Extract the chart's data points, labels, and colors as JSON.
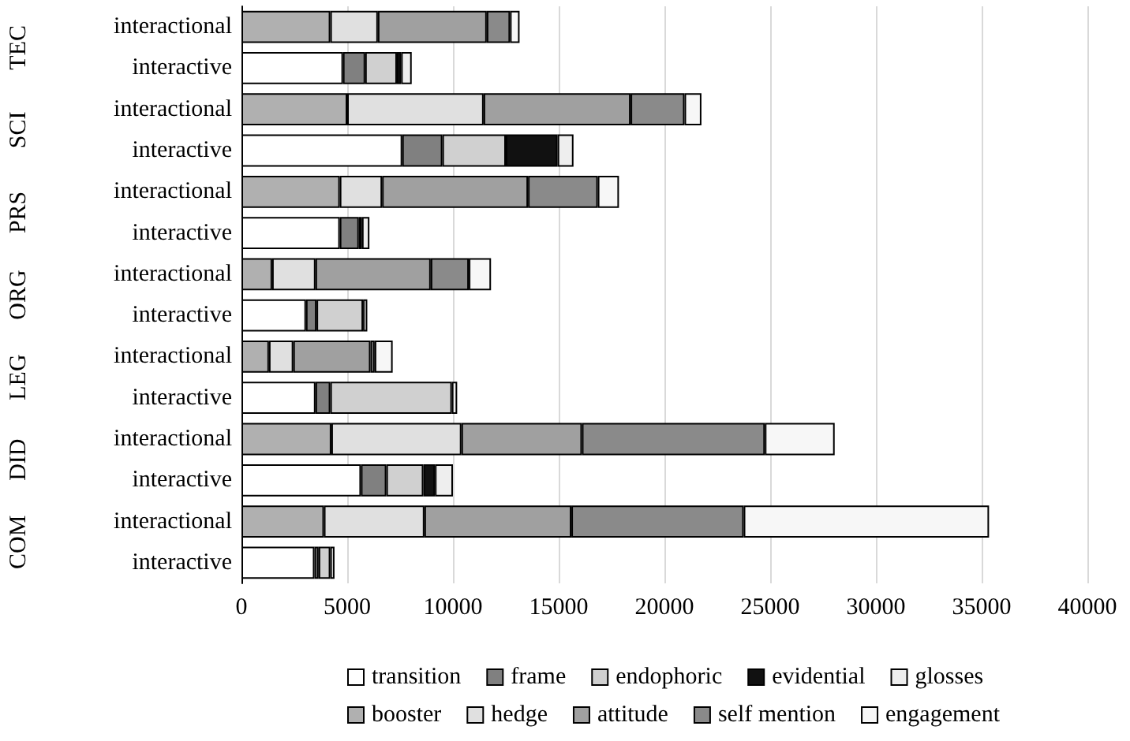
{
  "chart_data": {
    "type": "bar",
    "orientation": "horizontal",
    "stacked": true,
    "categories": [
      "interactional",
      "interactive",
      "interactional",
      "interactive",
      "interactional",
      "interactive",
      "interactional",
      "interactive",
      "interactional",
      "interactive",
      "interactional",
      "interactive",
      "interactional",
      "interactive"
    ],
    "annotations": [
      "TEC",
      "SCI",
      "PRS",
      "ORG",
      "LEG",
      "DID",
      "COM"
    ],
    "series": [
      {
        "name": "transition",
        "color": "#ffffff",
        "values": [
          null,
          4800,
          null,
          7600,
          null,
          4650,
          null,
          3050,
          null,
          3500,
          null,
          5650,
          null,
          3450
        ]
      },
      {
        "name": "frame",
        "color": "#808080",
        "values": [
          null,
          1050,
          null,
          1900,
          null,
          900,
          null,
          500,
          null,
          700,
          null,
          1200,
          null,
          200
        ]
      },
      {
        "name": "endophoric",
        "color": "#d0d0d0",
        "values": [
          null,
          1500,
          null,
          3000,
          null,
          null,
          null,
          2200,
          null,
          5750,
          null,
          1750,
          null,
          550
        ]
      },
      {
        "name": "evidential",
        "color": "#111111",
        "values": [
          null,
          200,
          null,
          2450,
          null,
          150,
          null,
          null,
          null,
          null,
          null,
          550,
          null,
          null
        ]
      },
      {
        "name": "glosses",
        "color": "#eeeeee",
        "values": [
          null,
          500,
          null,
          750,
          null,
          350,
          null,
          200,
          null,
          250,
          null,
          850,
          null,
          200
        ]
      },
      {
        "name": "booster",
        "color": "#b0b0b0",
        "values": [
          4200,
          null,
          5000,
          null,
          4650,
          null,
          1450,
          null,
          1300,
          null,
          4250,
          null,
          3900,
          null
        ]
      },
      {
        "name": "hedge",
        "color": "#e0e0e0",
        "values": [
          2250,
          null,
          6450,
          null,
          2000,
          null,
          2050,
          null,
          1150,
          null,
          6150,
          null,
          4750,
          null
        ]
      },
      {
        "name": "attitude",
        "color": "#a0a0a0",
        "values": [
          5150,
          null,
          6950,
          null,
          6900,
          null,
          5450,
          null,
          3650,
          null,
          5700,
          null,
          6950,
          null
        ]
      },
      {
        "name": "self mention",
        "color": "#8a8a8a",
        "values": [
          1100,
          null,
          2550,
          null,
          3300,
          null,
          1800,
          null,
          200,
          null,
          8650,
          null,
          8150,
          null
        ]
      },
      {
        "name": "engagement",
        "color": "#f7f7f7",
        "values": [
          450,
          null,
          800,
          null,
          1000,
          null,
          1050,
          null,
          850,
          null,
          3300,
          null,
          11600,
          null
        ]
      }
    ],
    "xlim": [
      0,
      40000
    ],
    "xticks": [
      0,
      5000,
      10000,
      15000,
      20000,
      25000,
      30000,
      35000,
      40000
    ],
    "grid": "x",
    "legend": "bottom"
  }
}
